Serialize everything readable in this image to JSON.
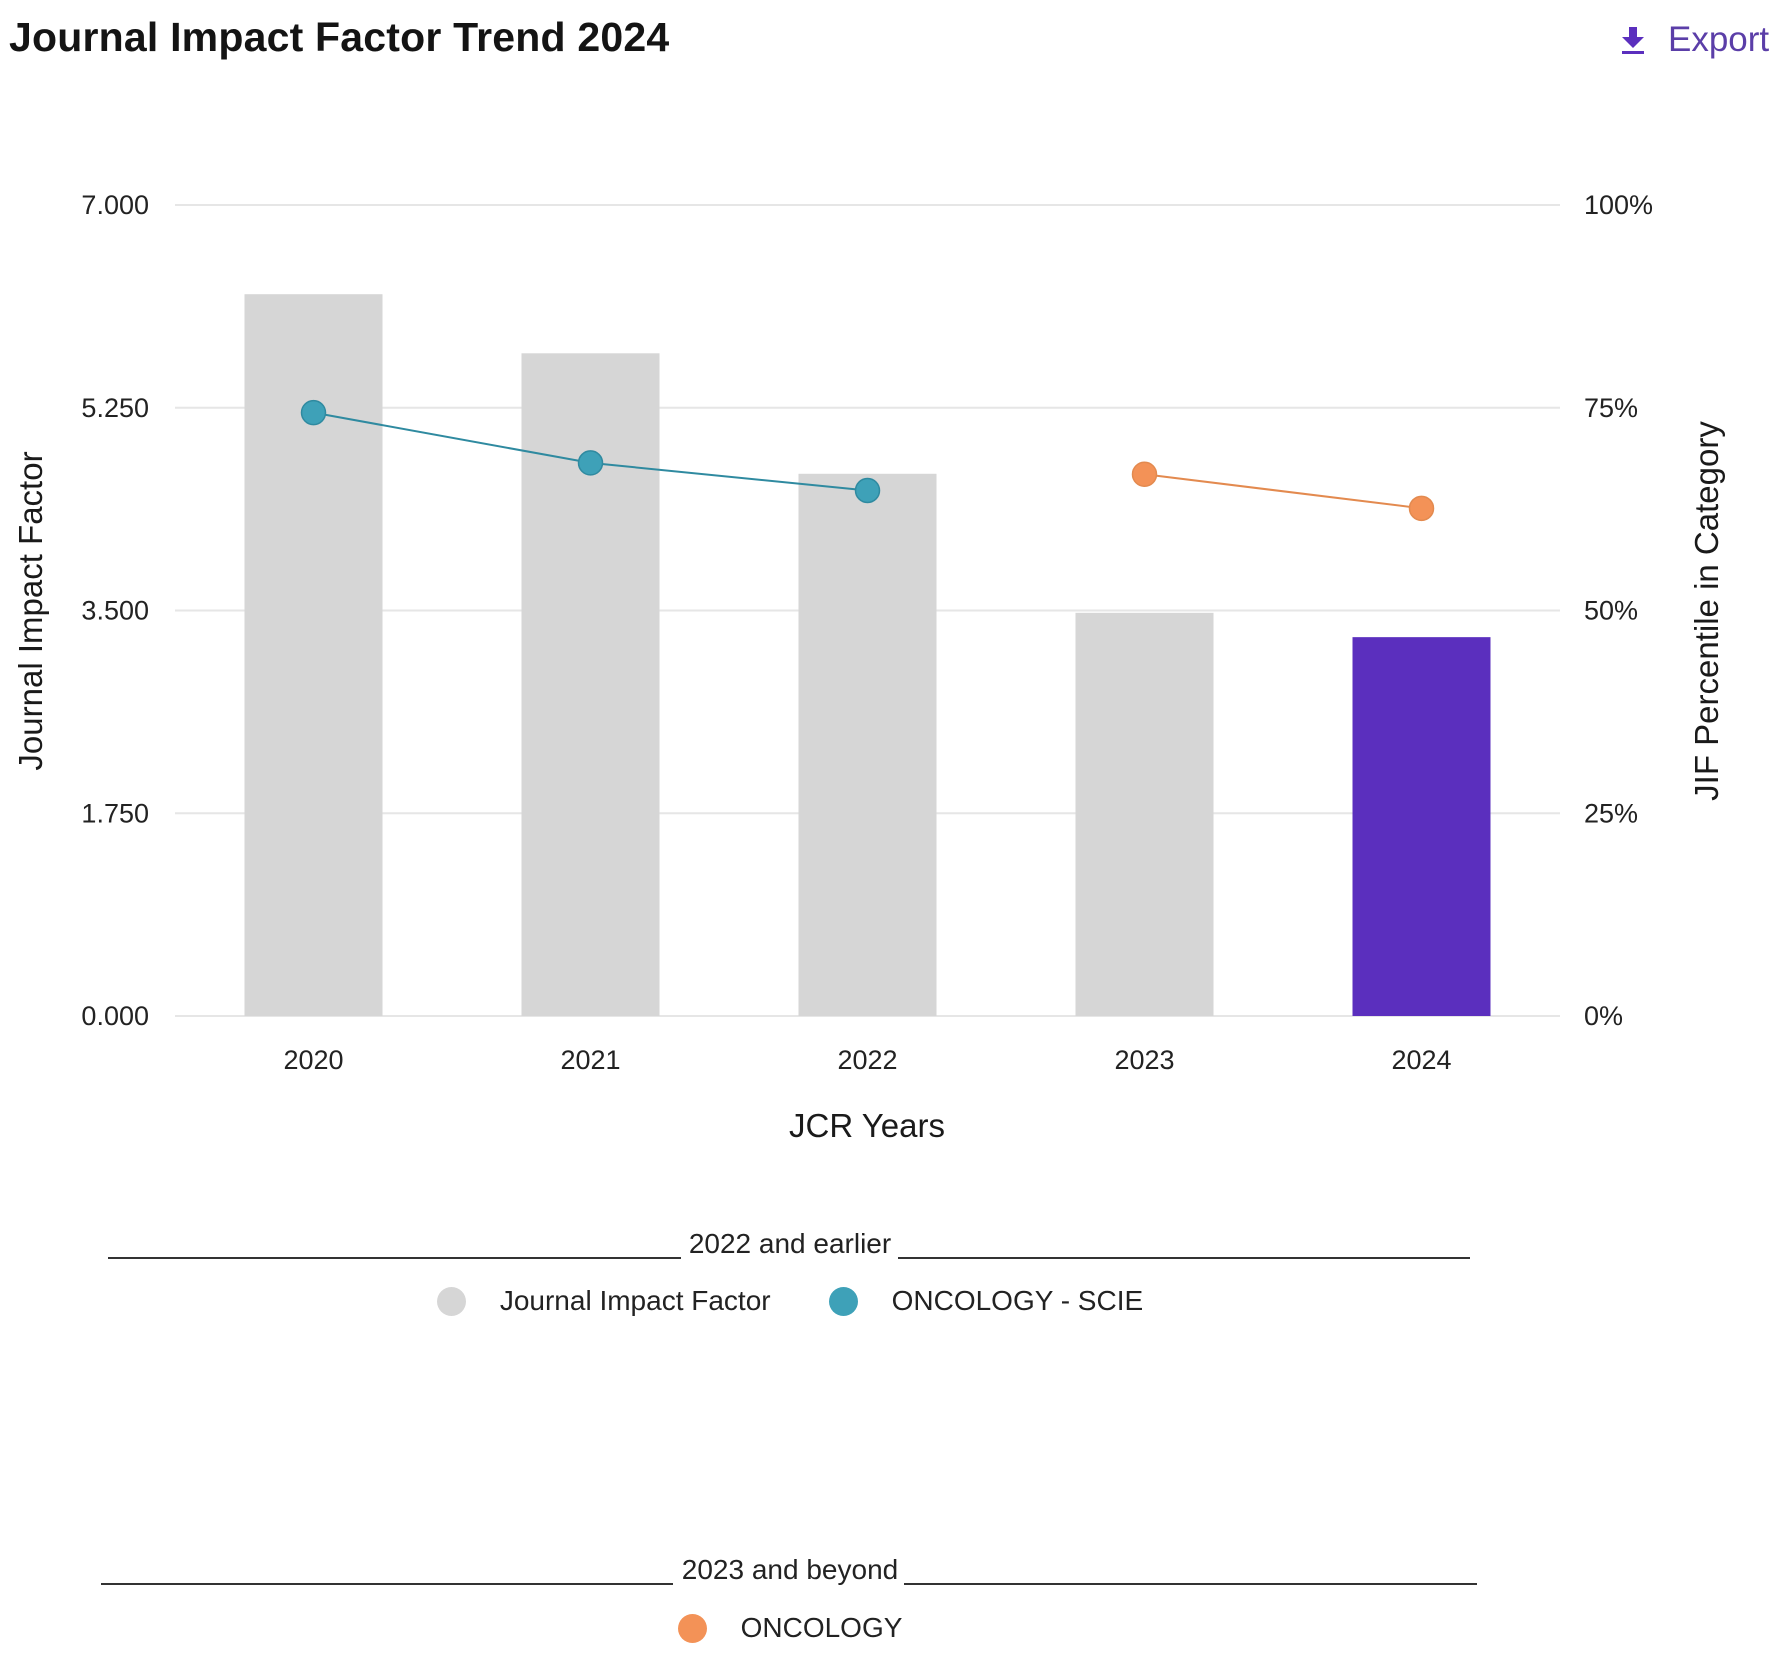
{
  "header": {
    "title": "Journal Impact Factor Trend 2024",
    "export_label": "Export",
    "export_icon": "download-icon"
  },
  "colors": {
    "bar_past": "#d6d6d6",
    "bar_current": "#5b2fbe",
    "series_scie": "#3ea1b8",
    "series_oncology": "#f39257",
    "gridline": "#e6e6e6",
    "accent": "#5b3ea8"
  },
  "chart_data": {
    "type": "bar",
    "title": "Journal Impact Factor Trend 2024",
    "xlabel": "JCR Years",
    "ylabel": "Journal Impact Factor",
    "y2label": "JIF Percentile in Category",
    "categories": [
      "2020",
      "2021",
      "2022",
      "2023",
      "2024"
    ],
    "ylim": [
      0,
      7
    ],
    "y_ticks": [
      "0.000",
      "1.750",
      "3.500",
      "5.250",
      "7.000"
    ],
    "y_tick_values": [
      0,
      1.75,
      3.5,
      5.25,
      7
    ],
    "y2lim": [
      0,
      100
    ],
    "y2_ticks": [
      "0%",
      "25%",
      "50%",
      "75%",
      "100%"
    ],
    "y2_tick_values": [
      0,
      25,
      50,
      75,
      100
    ],
    "grid": true,
    "series": [
      {
        "name": "Journal Impact Factor",
        "kind": "bar",
        "axis": "left",
        "values": [
          6.23,
          5.72,
          4.68,
          3.48,
          3.27
        ],
        "highlight_index": 4
      },
      {
        "name": "ONCOLOGY - SCIE",
        "kind": "line",
        "axis": "right",
        "unit": "percent",
        "values": [
          74.4,
          68.2,
          64.8,
          null,
          null
        ]
      },
      {
        "name": "ONCOLOGY",
        "kind": "line",
        "axis": "right",
        "unit": "percent",
        "values": [
          null,
          null,
          null,
          66.8,
          62.6
        ]
      }
    ],
    "legend_placement": "bottom"
  },
  "legend": {
    "groups": [
      {
        "heading": "2022 and earlier",
        "items": [
          {
            "label": "Journal Impact Factor",
            "color": "#d6d6d6"
          },
          {
            "label": "ONCOLOGY - SCIE",
            "color": "#3ea1b8"
          }
        ]
      },
      {
        "heading": "2023 and beyond",
        "items": [
          {
            "label": "ONCOLOGY",
            "color": "#f39257"
          }
        ]
      }
    ]
  }
}
